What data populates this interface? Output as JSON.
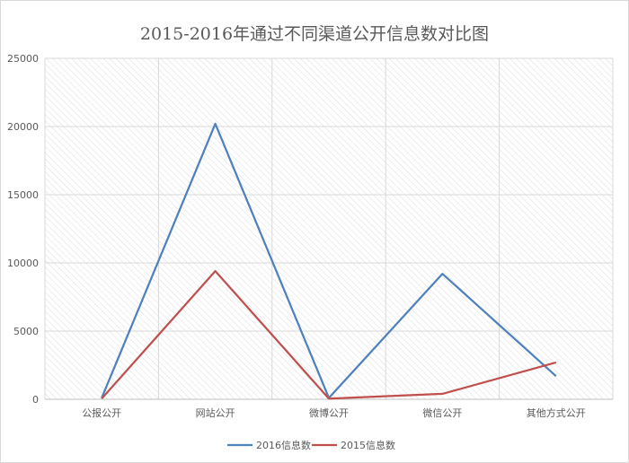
{
  "chart_data": {
    "type": "line",
    "title": "2015-2016年通过不同渠道公开信息数对比图",
    "categories": [
      "公报公开",
      "网站公开",
      "微博公开",
      "微信公开",
      "其他方式公开"
    ],
    "series": [
      {
        "name": "2016信息数",
        "color": "#4f81bd",
        "values": [
          100,
          20200,
          100,
          9200,
          1700
        ]
      },
      {
        "name": "2015信息数",
        "color": "#c0504d",
        "values": [
          50,
          9400,
          50,
          400,
          2700
        ]
      }
    ],
    "ylim": [
      0,
      25000
    ],
    "yticks": [
      0,
      5000,
      10000,
      15000,
      20000,
      25000
    ],
    "grid": true,
    "legend": "bottom"
  }
}
